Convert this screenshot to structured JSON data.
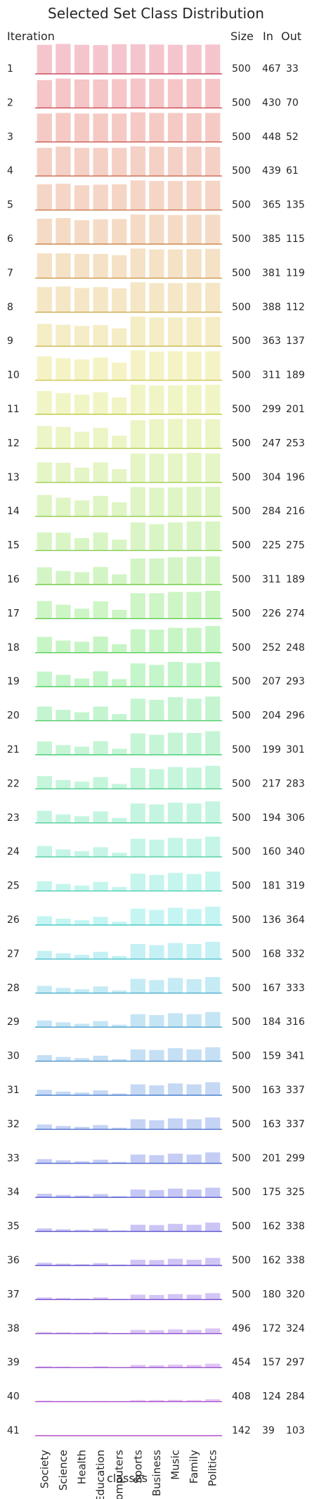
{
  "chart_data": {
    "type": "bar",
    "title": "Selected Set Class Distribution",
    "xlabel": "classes",
    "categories": [
      "Society",
      "Science",
      "Health",
      "Education",
      "Computers",
      "Sports",
      "Business",
      "Music",
      "Family",
      "Politics"
    ],
    "columns": {
      "iteration": "Iteration",
      "size": "Size",
      "in": "In",
      "out": "Out"
    },
    "grid": false,
    "colormap": "husl-rainbow (pink → orange → green → blue → purple → magenta)",
    "bar_alpha": 0.35,
    "rows": [
      {
        "iteration": "1",
        "size": "500",
        "in": "467",
        "out": "33",
        "values": [
          0.96,
          0.99,
          0.96,
          0.95,
          0.98,
          0.98,
          0.97,
          0.96,
          0.96,
          0.97
        ]
      },
      {
        "iteration": "2",
        "size": "500",
        "in": "430",
        "out": "70",
        "values": [
          0.92,
          0.97,
          0.94,
          0.94,
          0.95,
          0.97,
          0.96,
          0.95,
          0.96,
          0.96
        ]
      },
      {
        "iteration": "3",
        "size": "500",
        "in": "448",
        "out": "52",
        "values": [
          0.94,
          0.96,
          0.94,
          0.94,
          0.94,
          0.98,
          0.96,
          0.96,
          0.95,
          0.96
        ]
      },
      {
        "iteration": "4",
        "size": "500",
        "in": "439",
        "out": "61",
        "values": [
          0.93,
          0.97,
          0.93,
          0.93,
          0.93,
          0.98,
          0.97,
          0.96,
          0.97,
          0.96
        ]
      },
      {
        "iteration": "5",
        "size": "500",
        "in": "365",
        "out": "135",
        "values": [
          0.85,
          0.87,
          0.82,
          0.84,
          0.85,
          0.98,
          0.96,
          0.96,
          0.97,
          0.97
        ]
      },
      {
        "iteration": "6",
        "size": "500",
        "in": "385",
        "out": "115",
        "values": [
          0.84,
          0.86,
          0.79,
          0.82,
          0.83,
          0.98,
          0.97,
          0.96,
          0.97,
          0.97
        ]
      },
      {
        "iteration": "7",
        "size": "500",
        "in": "381",
        "out": "119",
        "values": [
          0.82,
          0.82,
          0.8,
          0.8,
          0.76,
          0.98,
          0.95,
          0.95,
          0.96,
          0.97
        ]
      },
      {
        "iteration": "8",
        "size": "500",
        "in": "388",
        "out": "112",
        "values": [
          0.83,
          0.85,
          0.8,
          0.83,
          0.79,
          0.99,
          0.96,
          0.96,
          0.97,
          0.97
        ]
      },
      {
        "iteration": "9",
        "size": "500",
        "in": "363",
        "out": "137",
        "values": [
          0.74,
          0.71,
          0.67,
          0.7,
          0.59,
          0.98,
          0.95,
          0.95,
          0.96,
          0.97
        ]
      },
      {
        "iteration": "10",
        "size": "500",
        "in": "311",
        "out": "189",
        "values": [
          0.79,
          0.73,
          0.69,
          0.75,
          0.58,
          0.99,
          0.95,
          0.96,
          0.95,
          0.96
        ]
      },
      {
        "iteration": "11",
        "size": "500",
        "in": "299",
        "out": "201",
        "values": [
          0.77,
          0.7,
          0.65,
          0.73,
          0.56,
          0.98,
          0.95,
          0.96,
          0.97,
          0.98
        ]
      },
      {
        "iteration": "12",
        "size": "500",
        "in": "247",
        "size2": "",
        "out": "253",
        "values": [
          0.74,
          0.71,
          0.55,
          0.68,
          0.42,
          0.93,
          0.96,
          0.97,
          0.97,
          0.96
        ]
      },
      {
        "iteration": "13",
        "size": "500",
        "in": "304",
        "out": "196",
        "values": [
          0.66,
          0.65,
          0.49,
          0.66,
          0.44,
          0.96,
          0.95,
          0.96,
          0.98,
          0.96
        ]
      },
      {
        "iteration": "14",
        "size": "500",
        "in": "284",
        "out": "216",
        "values": [
          0.71,
          0.62,
          0.53,
          0.68,
          0.47,
          0.97,
          0.95,
          0.96,
          0.98,
          0.98
        ]
      },
      {
        "iteration": "15",
        "size": "500",
        "in": "225",
        "out": "275",
        "values": [
          0.6,
          0.59,
          0.41,
          0.6,
          0.36,
          0.93,
          0.87,
          0.93,
          0.96,
          0.96
        ]
      },
      {
        "iteration": "16",
        "size": "500",
        "in": "311",
        "out": "189",
        "values": [
          0.57,
          0.45,
          0.41,
          0.58,
          0.34,
          0.86,
          0.86,
          0.9,
          0.92,
          0.93
        ]
      },
      {
        "iteration": "17",
        "size": "500",
        "in": "226",
        "out": "274",
        "values": [
          0.58,
          0.46,
          0.33,
          0.57,
          0.29,
          0.84,
          0.84,
          0.88,
          0.88,
          0.92
        ]
      },
      {
        "iteration": "18",
        "size": "500",
        "in": "252",
        "out": "248",
        "values": [
          0.52,
          0.4,
          0.36,
          0.53,
          0.28,
          0.77,
          0.76,
          0.82,
          0.82,
          0.88
        ]
      },
      {
        "iteration": "19",
        "size": "500",
        "in": "207",
        "out": "293",
        "values": [
          0.5,
          0.39,
          0.27,
          0.51,
          0.25,
          0.77,
          0.72,
          0.82,
          0.78,
          0.82
        ]
      },
      {
        "iteration": "20",
        "size": "500",
        "in": "204",
        "out": "296",
        "values": [
          0.47,
          0.36,
          0.28,
          0.47,
          0.22,
          0.73,
          0.69,
          0.78,
          0.73,
          0.8
        ]
      },
      {
        "iteration": "21",
        "size": "500",
        "in": "199",
        "out": "301",
        "values": [
          0.44,
          0.32,
          0.27,
          0.45,
          0.2,
          0.71,
          0.66,
          0.73,
          0.72,
          0.78
        ]
      },
      {
        "iteration": "22",
        "size": "500",
        "in": "217",
        "out": "283",
        "values": [
          0.42,
          0.29,
          0.24,
          0.39,
          0.16,
          0.69,
          0.65,
          0.72,
          0.7,
          0.76
        ]
      },
      {
        "iteration": "23",
        "size": "500",
        "in": "194",
        "out": "306",
        "values": [
          0.4,
          0.28,
          0.22,
          0.38,
          0.16,
          0.64,
          0.61,
          0.67,
          0.64,
          0.71
        ]
      },
      {
        "iteration": "24",
        "size": "500",
        "in": "160",
        "out": "340",
        "values": [
          0.36,
          0.25,
          0.19,
          0.32,
          0.14,
          0.6,
          0.57,
          0.63,
          0.6,
          0.67
        ]
      },
      {
        "iteration": "25",
        "size": "500",
        "in": "181",
        "out": "319",
        "values": [
          0.32,
          0.23,
          0.18,
          0.3,
          0.13,
          0.57,
          0.53,
          0.6,
          0.56,
          0.64
        ]
      },
      {
        "iteration": "26",
        "size": "500",
        "in": "136",
        "out": "364",
        "values": [
          0.29,
          0.21,
          0.16,
          0.27,
          0.11,
          0.54,
          0.5,
          0.57,
          0.53,
          0.61
        ]
      },
      {
        "iteration": "27",
        "size": "500",
        "in": "168",
        "out": "332",
        "values": [
          0.27,
          0.19,
          0.14,
          0.24,
          0.1,
          0.5,
          0.46,
          0.53,
          0.5,
          0.57
        ]
      },
      {
        "iteration": "28",
        "size": "500",
        "in": "167",
        "out": "333",
        "values": [
          0.24,
          0.17,
          0.13,
          0.22,
          0.09,
          0.47,
          0.43,
          0.5,
          0.46,
          0.53
        ]
      },
      {
        "iteration": "29",
        "size": "500",
        "in": "184",
        "out": "316",
        "values": [
          0.22,
          0.16,
          0.11,
          0.2,
          0.08,
          0.43,
          0.4,
          0.46,
          0.43,
          0.5
        ]
      },
      {
        "iteration": "30",
        "size": "500",
        "in": "159",
        "out": "341",
        "values": [
          0.2,
          0.14,
          0.1,
          0.18,
          0.07,
          0.39,
          0.37,
          0.43,
          0.39,
          0.46
        ]
      },
      {
        "iteration": "31",
        "size": "500",
        "in": "163",
        "out": "337",
        "values": [
          0.18,
          0.12,
          0.09,
          0.16,
          0.06,
          0.36,
          0.33,
          0.39,
          0.36,
          0.43
        ]
      },
      {
        "iteration": "32",
        "size": "500",
        "in": "163",
        "out": "337",
        "values": [
          0.16,
          0.11,
          0.08,
          0.14,
          0.05,
          0.33,
          0.3,
          0.36,
          0.33,
          0.39
        ]
      },
      {
        "iteration": "33",
        "size": "500",
        "in": "201",
        "out": "299",
        "values": [
          0.14,
          0.1,
          0.07,
          0.12,
          0.05,
          0.29,
          0.27,
          0.32,
          0.29,
          0.36
        ]
      },
      {
        "iteration": "34",
        "size": "500",
        "in": "175",
        "out": "325",
        "values": [
          0.12,
          0.08,
          0.06,
          0.11,
          0.04,
          0.26,
          0.24,
          0.29,
          0.26,
          0.32
        ]
      },
      {
        "iteration": "35",
        "size": "500",
        "in": "162",
        "out": "338",
        "values": [
          0.1,
          0.07,
          0.05,
          0.09,
          0.03,
          0.22,
          0.21,
          0.25,
          0.22,
          0.29
        ]
      },
      {
        "iteration": "36",
        "size": "500",
        "in": "162",
        "out": "338",
        "values": [
          0.09,
          0.06,
          0.04,
          0.08,
          0.03,
          0.19,
          0.18,
          0.22,
          0.19,
          0.25
        ]
      },
      {
        "iteration": "37",
        "size": "500",
        "in": "180",
        "out": "320",
        "values": [
          0.07,
          0.05,
          0.03,
          0.07,
          0.02,
          0.16,
          0.15,
          0.18,
          0.16,
          0.21
        ]
      },
      {
        "iteration": "38",
        "size": "496",
        "in": "172",
        "out": "324",
        "values": [
          0.05,
          0.04,
          0.03,
          0.05,
          0.02,
          0.12,
          0.11,
          0.14,
          0.12,
          0.17
        ]
      },
      {
        "iteration": "39",
        "size": "454",
        "in": "157",
        "out": "297",
        "values": [
          0.04,
          0.03,
          0.02,
          0.04,
          0.01,
          0.09,
          0.08,
          0.1,
          0.09,
          0.13
        ]
      },
      {
        "iteration": "40",
        "size": "408",
        "in": "124",
        "out": "284",
        "values": [
          0.03,
          0.02,
          0.01,
          0.02,
          0.01,
          0.05,
          0.05,
          0.06,
          0.05,
          0.08
        ]
      },
      {
        "iteration": "41",
        "size": "142",
        "in": "39",
        "out": "103",
        "values": [
          0.0,
          0.0,
          0.0,
          0.0,
          0.0,
          0.0,
          0.0,
          0.0,
          0.0,
          0.0
        ]
      }
    ]
  }
}
